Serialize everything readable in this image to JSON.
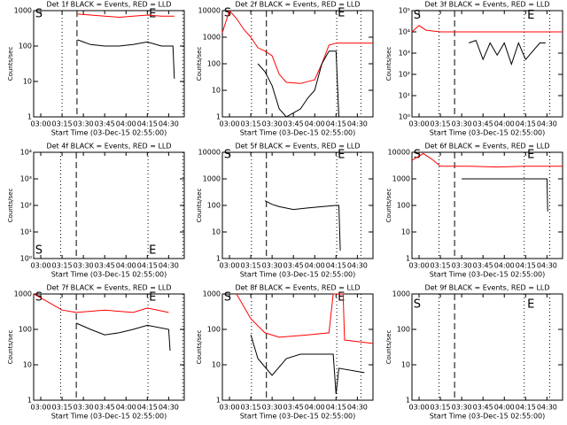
{
  "chart_data": [
    {
      "type": "line",
      "title": "Det 1f BLACK = Events, RED = LLD",
      "xlabel": "Start Time (03-Dec-15 02:55:00)",
      "ylabel": "Counts/sec",
      "log_y": true,
      "xlim": [
        0,
        106
      ],
      "ylim": [
        1,
        1000
      ],
      "xticks": [
        {
          "value": 5,
          "label": "03:00"
        },
        {
          "value": 20,
          "label": "03:15"
        },
        {
          "value": 35,
          "label": "03:30"
        },
        {
          "value": 50,
          "label": "03:45"
        },
        {
          "value": 65,
          "label": "04:00"
        },
        {
          "value": 80,
          "label": "04:15"
        },
        {
          "value": 95,
          "label": "04:30"
        }
      ],
      "yticks": [
        1,
        10,
        100,
        1000
      ],
      "vlines": [
        {
          "x": 20,
          "style": "dotted"
        },
        {
          "x": 30.5,
          "style": "dashed"
        },
        {
          "x": 80.5,
          "style": "dotted"
        },
        {
          "x": 105,
          "style": "dotted"
        }
      ],
      "annotations": [
        {
          "text": "S",
          "x": 0.5,
          "y": 800
        },
        {
          "text": "E",
          "x": 80.5,
          "y": 800
        }
      ],
      "series": [
        {
          "color": "#ff0000",
          "x": [
            31,
            40,
            50,
            60,
            70,
            80,
            90,
            99
          ],
          "values": [
            800,
            750,
            700,
            650,
            700,
            750,
            700,
            700
          ]
        },
        {
          "color": "#000000",
          "x": [
            31,
            35,
            40,
            50,
            60,
            70,
            80,
            90,
            98,
            99
          ],
          "values": [
            150,
            130,
            110,
            100,
            100,
            110,
            130,
            100,
            100,
            12
          ]
        }
      ]
    },
    {
      "type": "line",
      "title": "Det 2f BLACK = Events, RED = LLD",
      "xlabel": "Start Time (03-Dec-15 02:55:00)",
      "ylabel": "Counts/sec",
      "log_y": true,
      "xlim": [
        0,
        106
      ],
      "ylim": [
        1,
        10000
      ],
      "xticks": [
        {
          "value": 5,
          "label": "03:00"
        },
        {
          "value": 20,
          "label": "03:15"
        },
        {
          "value": 35,
          "label": "03:30"
        },
        {
          "value": 50,
          "label": "03:45"
        },
        {
          "value": 65,
          "label": "04:00"
        },
        {
          "value": 80,
          "label": "04:15"
        },
        {
          "value": 95,
          "label": "04:30"
        }
      ],
      "yticks": [
        1,
        10,
        100,
        1000,
        10000
      ],
      "vlines": [
        {
          "x": 20.5,
          "style": "dotted"
        },
        {
          "x": 31,
          "style": "dashed"
        },
        {
          "x": 80.5,
          "style": "dotted"
        },
        {
          "x": 97.5,
          "style": "dotted"
        }
      ],
      "annotations": [
        {
          "text": "S",
          "x": 0.5,
          "y": 8000
        },
        {
          "text": "E",
          "x": 80.5,
          "y": 8000
        }
      ],
      "series": [
        {
          "color": "#ff0000",
          "x": [
            0,
            5,
            10,
            15,
            20,
            25,
            30,
            35,
            40,
            45,
            55,
            65,
            70,
            75,
            80,
            106
          ],
          "values": [
            1500,
            10000,
            5000,
            2000,
            1000,
            400,
            300,
            200,
            40,
            20,
            18,
            25,
            100,
            500,
            600,
            600
          ]
        },
        {
          "color": "#000000",
          "x": [
            25,
            30,
            35,
            40,
            45,
            55,
            60,
            65,
            70,
            75,
            80,
            82
          ],
          "values": [
            100,
            50,
            15,
            2,
            1,
            2,
            5,
            10,
            100,
            300,
            300,
            1
          ]
        }
      ]
    },
    {
      "type": "line",
      "title": "Det 3f BLACK = Events, RED = LLD",
      "xlabel": "Start Time (03-Dec-15 02:55:00)",
      "ylabel": "Counts/sec",
      "log_y": true,
      "xlim": [
        0,
        106
      ],
      "ylim": [
        1,
        100000
      ],
      "xticks": [
        {
          "value": 5,
          "label": "03:00"
        },
        {
          "value": 20,
          "label": "03:15"
        },
        {
          "value": 35,
          "label": "03:30"
        },
        {
          "value": 50,
          "label": "03:45"
        },
        {
          "value": 65,
          "label": "04:00"
        },
        {
          "value": 80,
          "label": "04:15"
        },
        {
          "value": 95,
          "label": "04:30"
        }
      ],
      "yticks": [
        {
          "value": 1,
          "label": "10⁰"
        },
        {
          "value": 10,
          "label": "10¹"
        },
        {
          "value": 100,
          "label": "10²"
        },
        {
          "value": 1000,
          "label": "10³"
        },
        {
          "value": 10000,
          "label": "10⁴"
        },
        {
          "value": 100000,
          "label": "10⁵"
        }
      ],
      "vlines": [
        {
          "x": 19,
          "style": "dotted"
        },
        {
          "x": 30,
          "style": "dashed"
        },
        {
          "x": 79,
          "style": "dotted"
        },
        {
          "x": 97,
          "style": "dotted"
        }
      ],
      "annotations": [
        {
          "text": "S",
          "x": 0.5,
          "y": 60000
        },
        {
          "text": "E",
          "x": 80.5,
          "y": 60000
        }
      ],
      "series": [
        {
          "color": "#ff0000",
          "x": [
            0,
            5,
            10,
            20,
            106
          ],
          "values": [
            10000,
            20000,
            12000,
            10000,
            10000
          ]
        },
        {
          "color": "#000000",
          "x": [
            40,
            45,
            50,
            55,
            60,
            65,
            70,
            75,
            80,
            90,
            94
          ],
          "values": [
            3000,
            4000,
            500,
            3000,
            800,
            3000,
            300,
            3000,
            500,
            3000,
            3000
          ]
        }
      ]
    },
    {
      "type": "line",
      "title": "Det 4f BLACK = Events, RED = LLD",
      "xlabel": "Start Time (03-Dec-15 02:55:00)",
      "ylabel": "Counts/sec",
      "log_y": true,
      "xlim": [
        0,
        106
      ],
      "ylim": [
        1,
        10000
      ],
      "xticks": [
        {
          "value": 5,
          "label": "03:00"
        },
        {
          "value": 20,
          "label": "03:15"
        },
        {
          "value": 35,
          "label": "03:30"
        },
        {
          "value": 50,
          "label": "03:45"
        },
        {
          "value": 65,
          "label": "04:00"
        },
        {
          "value": 80,
          "label": "04:15"
        },
        {
          "value": 95,
          "label": "04:30"
        }
      ],
      "yticks": [
        {
          "value": 1,
          "label": "10⁰"
        },
        {
          "value": 10,
          "label": "10¹"
        },
        {
          "value": 100,
          "label": "10²"
        },
        {
          "value": 1000,
          "label": "10³"
        },
        {
          "value": 10000,
          "label": "10⁴"
        }
      ],
      "vlines": [
        {
          "x": 19,
          "style": "dotted"
        },
        {
          "x": 30,
          "style": "dashed"
        },
        {
          "x": 80.5,
          "style": "dotted"
        },
        {
          "x": 105,
          "style": "dotted"
        }
      ],
      "annotations": [
        {
          "text": "S",
          "x": 0.5,
          "y": 2
        },
        {
          "text": "E",
          "x": 80.5,
          "y": 2
        }
      ],
      "series": []
    },
    {
      "type": "line",
      "title": "Det 5f BLACK = Events, RED = LLD",
      "xlabel": "Start Time (03-Dec-15 02:55:00)",
      "ylabel": "Counts/sec",
      "log_y": true,
      "xlim": [
        0,
        106
      ],
      "ylim": [
        1,
        10000
      ],
      "xticks": [
        {
          "value": 5,
          "label": "03:00"
        },
        {
          "value": 20,
          "label": "03:15"
        },
        {
          "value": 35,
          "label": "03:30"
        },
        {
          "value": 50,
          "label": "03:45"
        },
        {
          "value": 65,
          "label": "04:00"
        },
        {
          "value": 80,
          "label": "04:15"
        },
        {
          "value": 95,
          "label": "04:30"
        }
      ],
      "yticks": [
        1,
        10,
        100,
        1000,
        10000
      ],
      "vlines": [
        {
          "x": 20.5,
          "style": "dotted"
        },
        {
          "x": 31,
          "style": "dashed"
        },
        {
          "x": 80.5,
          "style": "dotted"
        },
        {
          "x": 97.5,
          "style": "dotted"
        }
      ],
      "annotations": [
        {
          "text": "S",
          "x": 0.5,
          "y": 8000
        },
        {
          "text": "E",
          "x": 80.5,
          "y": 8000
        }
      ],
      "series": [
        {
          "color": "#000000",
          "x": [
            30,
            35,
            40,
            50,
            60,
            70,
            80,
            82,
            83
          ],
          "values": [
            150,
            110,
            90,
            70,
            80,
            90,
            100,
            100,
            2
          ]
        }
      ]
    },
    {
      "type": "line",
      "title": "Det 6f BLACK = Events, RED = LLD",
      "xlabel": "Start Time (03-Dec-15 02:55:00)",
      "ylabel": "Counts/sec",
      "log_y": true,
      "xlim": [
        0,
        106
      ],
      "ylim": [
        1,
        10000
      ],
      "xticks": [
        {
          "value": 5,
          "label": "03:00"
        },
        {
          "value": 20,
          "label": "03:15"
        },
        {
          "value": 35,
          "label": "03:30"
        },
        {
          "value": 50,
          "label": "03:45"
        },
        {
          "value": 65,
          "label": "04:00"
        },
        {
          "value": 80,
          "label": "04:15"
        },
        {
          "value": 95,
          "label": "04:30"
        }
      ],
      "yticks": [
        1,
        10,
        100,
        1000,
        10000
      ],
      "vlines": [
        {
          "x": 19,
          "style": "dotted"
        },
        {
          "x": 30,
          "style": "dashed"
        },
        {
          "x": 79,
          "style": "dotted"
        },
        {
          "x": 97,
          "style": "dotted"
        }
      ],
      "annotations": [
        {
          "text": "S",
          "x": 0.5,
          "y": 8000
        },
        {
          "text": "E",
          "x": 80.5,
          "y": 8000
        }
      ],
      "series": [
        {
          "color": "#ff0000",
          "x": [
            0,
            8,
            15,
            20,
            40,
            60,
            80,
            106
          ],
          "values": [
            5000,
            9000,
            5000,
            3000,
            3000,
            2800,
            3000,
            3000
          ]
        },
        {
          "color": "#000000",
          "x": [
            35,
            50,
            70,
            80,
            95,
            95.5
          ],
          "values": [
            1000,
            1000,
            1000,
            1000,
            1000,
            60
          ]
        }
      ]
    },
    {
      "type": "line",
      "title": "Det 7f BLACK = Events, RED = LLD",
      "xlabel": "Start Time (03-Dec-15 02:55:00)",
      "ylabel": "Counts/sec",
      "log_y": true,
      "xlim": [
        0,
        106
      ],
      "ylim": [
        1,
        1000
      ],
      "xticks": [
        {
          "value": 5,
          "label": "03:00"
        },
        {
          "value": 20,
          "label": "03:15"
        },
        {
          "value": 35,
          "label": "03:30"
        },
        {
          "value": 50,
          "label": "03:45"
        },
        {
          "value": 65,
          "label": "04:00"
        },
        {
          "value": 80,
          "label": "04:15"
        },
        {
          "value": 95,
          "label": "04:30"
        }
      ],
      "yticks": [
        1,
        10,
        100,
        1000
      ],
      "vlines": [
        {
          "x": 19,
          "style": "dotted"
        },
        {
          "x": 30,
          "style": "dashed"
        },
        {
          "x": 80.5,
          "style": "dotted"
        },
        {
          "x": 105,
          "style": "dotted"
        }
      ],
      "annotations": [
        {
          "text": "S",
          "x": 0.5,
          "y": 800
        },
        {
          "text": "E",
          "x": 80.5,
          "y": 800
        }
      ],
      "series": [
        {
          "color": "#ff0000",
          "x": [
            0,
            10,
            20,
            30,
            50,
            70,
            80,
            95
          ],
          "values": [
            1000,
            600,
            350,
            300,
            350,
            300,
            400,
            300
          ]
        },
        {
          "color": "#000000",
          "x": [
            30,
            40,
            50,
            60,
            70,
            80,
            95,
            96
          ],
          "values": [
            150,
            100,
            70,
            80,
            100,
            130,
            100,
            25
          ]
        }
      ]
    },
    {
      "type": "line",
      "title": "Det 8f BLACK = Events, RED = LLD",
      "xlabel": "Start Time (03-Dec-15 02:55:00)",
      "ylabel": "Counts/sec",
      "log_y": true,
      "xlim": [
        0,
        106
      ],
      "ylim": [
        1,
        1000
      ],
      "xticks": [
        {
          "value": 5,
          "label": "03:00"
        },
        {
          "value": 20,
          "label": "03:15"
        },
        {
          "value": 35,
          "label": "03:30"
        },
        {
          "value": 50,
          "label": "03:45"
        },
        {
          "value": 65,
          "label": "04:00"
        },
        {
          "value": 80,
          "label": "04:15"
        },
        {
          "value": 95,
          "label": "04:30"
        }
      ],
      "yticks": [
        1,
        10,
        100,
        1000
      ],
      "vlines": [
        {
          "x": 20.5,
          "style": "dotted"
        },
        {
          "x": 31,
          "style": "dashed"
        },
        {
          "x": 80.5,
          "style": "dotted"
        },
        {
          "x": 97.5,
          "style": "dotted"
        }
      ],
      "annotations": [
        {
          "text": "S",
          "x": 0.5,
          "y": 800
        },
        {
          "text": "E",
          "x": 80.5,
          "y": 800
        }
      ],
      "series": [
        {
          "color": "#ff0000",
          "x": [
            10,
            20,
            30,
            40,
            60,
            75,
            78,
            85,
            86,
            106
          ],
          "values": [
            1000,
            200,
            80,
            60,
            70,
            80,
            1000,
            1000,
            50,
            40
          ]
        },
        {
          "color": "#000000",
          "x": [
            20,
            25,
            35,
            45,
            55,
            70,
            78,
            80,
            82,
            100
          ],
          "values": [
            70,
            15,
            5,
            15,
            20,
            20,
            20,
            1.5,
            8,
            6
          ]
        }
      ]
    },
    {
      "type": "line",
      "title": "Det 9f BLACK = Events, RED = LLD",
      "xlabel": "Start Time (03-Dec-15 02:55:00)",
      "ylabel": "Counts/sec",
      "log_y": true,
      "xlim": [
        0,
        106
      ],
      "ylim": [
        1,
        1000
      ],
      "xticks": [
        {
          "value": 5,
          "label": "03:00"
        },
        {
          "value": 20,
          "label": "03:15"
        },
        {
          "value": 35,
          "label": "03:30"
        },
        {
          "value": 50,
          "label": "03:45"
        },
        {
          "value": 65,
          "label": "04:00"
        },
        {
          "value": 80,
          "label": "04:15"
        },
        {
          "value": 95,
          "label": "04:30"
        }
      ],
      "yticks": [
        1,
        10,
        100,
        1000
      ],
      "vlines": [
        {
          "x": 19,
          "style": "dotted"
        },
        {
          "x": 30,
          "style": "dashed"
        },
        {
          "x": 79,
          "style": "dotted"
        },
        {
          "x": 97,
          "style": "dotted"
        }
      ],
      "annotations": [
        {
          "text": "S",
          "x": 0.5,
          "y": 500
        },
        {
          "text": "E",
          "x": 80.5,
          "y": 500
        }
      ],
      "series": []
    }
  ]
}
